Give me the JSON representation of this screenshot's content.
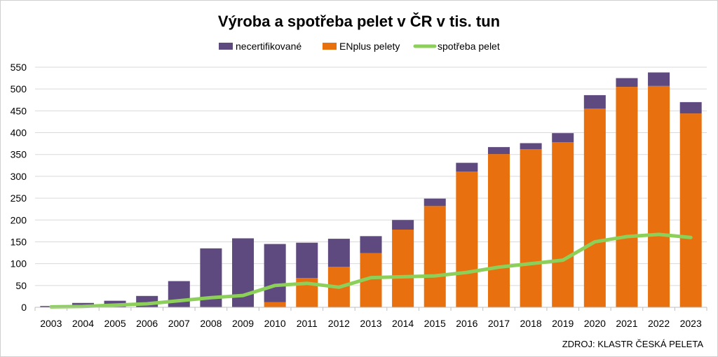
{
  "chart_data": {
    "type": "bar",
    "stacked": true,
    "title": "Výroba a spotřeba pelet v ČR v tis. tun",
    "xlabel": "",
    "ylabel": "",
    "source": "ZDROJ: KLASTR ČESKÁ PELETA",
    "categories": [
      "2003",
      "2004",
      "2005",
      "2006",
      "2007",
      "2008",
      "2009",
      "2010",
      "2011",
      "2012",
      "2013",
      "2014",
      "2015",
      "2016",
      "2017",
      "2018",
      "2019",
      "2020",
      "2021",
      "2022",
      "2023"
    ],
    "ylim": [
      0,
      550
    ],
    "yticks": [
      0,
      50,
      100,
      150,
      200,
      250,
      300,
      350,
      400,
      450,
      500,
      550
    ],
    "grid": true,
    "legend_position": "top-center",
    "series": [
      {
        "name": "ENplus pelety",
        "type": "bar",
        "color": "#E8700E",
        "values": [
          0,
          0,
          0,
          0,
          0,
          0,
          0,
          12,
          67,
          93,
          124,
          178,
          232,
          311,
          351,
          362,
          378,
          455,
          505,
          507,
          444
        ]
      },
      {
        "name": "necertifikované",
        "type": "bar",
        "color": "#5E4A7E",
        "values": [
          3,
          10,
          15,
          26,
          60,
          135,
          158,
          133,
          81,
          64,
          39,
          22,
          17,
          20,
          16,
          14,
          21,
          31,
          20,
          31,
          26
        ]
      },
      {
        "name": "spotřeba pelet",
        "type": "line",
        "color": "#8CD05A",
        "values": [
          1,
          2,
          5,
          8,
          15,
          22,
          27,
          50,
          55,
          46,
          68,
          70,
          72,
          80,
          92,
          100,
          108,
          150,
          162,
          167,
          160
        ]
      }
    ],
    "legend_order": [
      "necertifikované",
      "ENplus pelety",
      "spotřeba pelet"
    ]
  }
}
